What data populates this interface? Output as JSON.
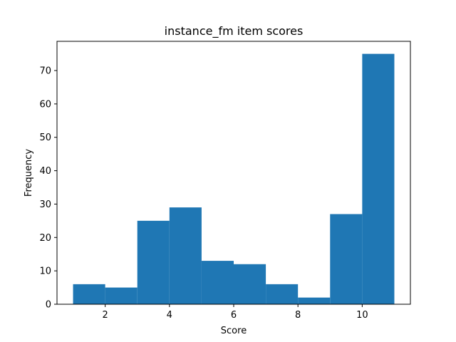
{
  "chart_data": {
    "type": "bar",
    "title": "instance_fm item scores",
    "xlabel": "Score",
    "ylabel": "Frequency",
    "bins": [
      {
        "x0": 1,
        "x1": 2,
        "value": 6
      },
      {
        "x0": 2,
        "x1": 3,
        "value": 5
      },
      {
        "x0": 3,
        "x1": 4,
        "value": 25
      },
      {
        "x0": 4,
        "x1": 5,
        "value": 29
      },
      {
        "x0": 5,
        "x1": 6,
        "value": 13
      },
      {
        "x0": 6,
        "x1": 7,
        "value": 12
      },
      {
        "x0": 7,
        "x1": 8,
        "value": 6
      },
      {
        "x0": 8,
        "x1": 9,
        "value": 2
      },
      {
        "x0": 9,
        "x1": 10,
        "value": 27
      },
      {
        "x0": 10,
        "x1": 11,
        "value": 75
      }
    ],
    "xlim": [
      0.5,
      11.5
    ],
    "ylim": [
      0,
      78.75
    ],
    "x_ticks": [
      2,
      4,
      6,
      8,
      10
    ],
    "y_ticks": [
      0,
      10,
      20,
      30,
      40,
      50,
      60,
      70
    ],
    "bar_color": "#1f77b4",
    "grid": false,
    "legend": "none"
  }
}
